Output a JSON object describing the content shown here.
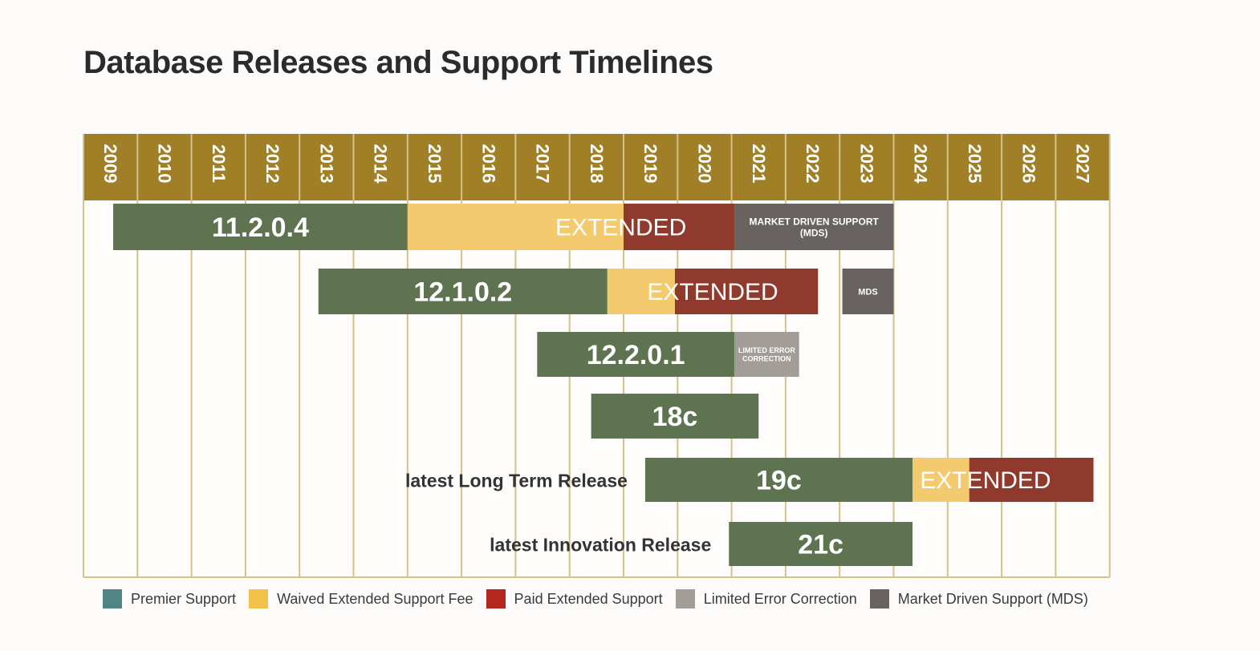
{
  "colors": {
    "header": "#a07f26",
    "header_text": "#ffffff",
    "grid": "#d7c08a",
    "premier": "#5e7451",
    "waived": "#f3ca6e",
    "paid": "#8f3a2d",
    "limited": "#a39d98",
    "mds": "#686260",
    "legend_premier": "#4f8582",
    "legend_waived": "#f2c14a",
    "legend_paid": "#b3271e",
    "legend_limited": "#a39d98",
    "legend_mds": "#686260"
  },
  "chart_data": {
    "type": "gantt",
    "title": "Database Releases and Support Timelines",
    "years": [
      "2009",
      "2010",
      "2011",
      "2012",
      "2013",
      "2014",
      "2015",
      "2016",
      "2017",
      "2018",
      "2019",
      "2020",
      "2021",
      "2022",
      "2023",
      "2024",
      "2025",
      "2026",
      "2027"
    ],
    "rows": [
      {
        "release": "11.2.0.4",
        "segments": [
          {
            "type": "premier",
            "start": 2009.55,
            "end": 2015.0,
            "label": "11.2.0.4"
          },
          {
            "type": "waived",
            "start": 2015.0,
            "end": 2019.0,
            "label": ""
          },
          {
            "type": "paid",
            "start": 2019.0,
            "end": 2021.05,
            "label": ""
          },
          {
            "type": "mds",
            "start": 2021.05,
            "end": 2024.0,
            "label": "MARKET DRIVEN SUPPORT (MDS)"
          }
        ],
        "overlay_label": {
          "text": "EXTENDED",
          "center": 2018.95
        }
      },
      {
        "release": "12.1.0.2",
        "segments": [
          {
            "type": "premier",
            "start": 2013.35,
            "end": 2018.7,
            "label": "12.1.0.2"
          },
          {
            "type": "waived",
            "start": 2018.7,
            "end": 2019.95,
            "label": ""
          },
          {
            "type": "paid",
            "start": 2019.95,
            "end": 2022.6,
            "label": ""
          },
          {
            "type": "mds",
            "start": 2023.05,
            "end": 2024.0,
            "label": "MDS"
          }
        ],
        "overlay_label": {
          "text": "EXTENDED",
          "center": 2020.65
        }
      },
      {
        "release": "12.2.0.1",
        "segments": [
          {
            "type": "premier",
            "start": 2017.4,
            "end": 2021.05,
            "label": "12.2.0.1"
          },
          {
            "type": "limited",
            "start": 2021.05,
            "end": 2022.25,
            "label": "LIMITED ERROR CORRECTION"
          }
        ]
      },
      {
        "release": "18c",
        "segments": [
          {
            "type": "premier",
            "start": 2018.4,
            "end": 2021.5,
            "label": "18c"
          }
        ]
      },
      {
        "release": "19c",
        "side_label": "latest Long Term Release",
        "segments": [
          {
            "type": "premier",
            "start": 2019.4,
            "end": 2024.35,
            "label": "19c"
          },
          {
            "type": "waived",
            "start": 2024.35,
            "end": 2025.4,
            "label": ""
          },
          {
            "type": "paid",
            "start": 2025.4,
            "end": 2027.7,
            "label": ""
          }
        ],
        "overlay_label": {
          "text": "EXTENDED",
          "center": 2025.7
        }
      },
      {
        "release": "21c",
        "side_label": "latest Innovation Release",
        "segments": [
          {
            "type": "premier",
            "start": 2020.95,
            "end": 2024.35,
            "label": "21c"
          }
        ]
      }
    ],
    "legend": [
      {
        "label": "Premier Support",
        "color_key": "legend_premier"
      },
      {
        "label": "Waived Extended Support Fee",
        "color_key": "legend_waived"
      },
      {
        "label": "Paid Extended Support",
        "color_key": "legend_paid"
      },
      {
        "label": "Limited Error Correction",
        "color_key": "legend_limited"
      },
      {
        "label": "Market Driven Support (MDS)",
        "color_key": "legend_mds"
      }
    ]
  }
}
